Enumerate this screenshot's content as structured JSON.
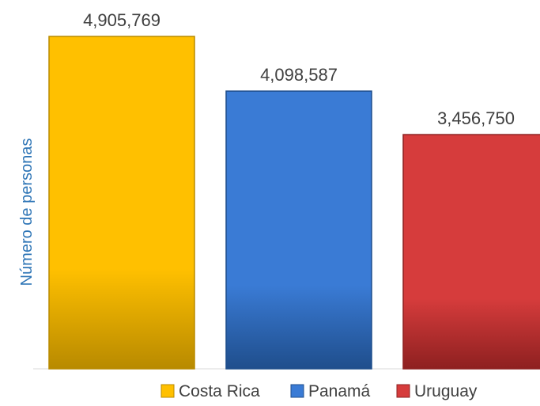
{
  "chart_data": {
    "type": "bar",
    "title": "",
    "xlabel": "",
    "ylabel": "Número de personas",
    "categories": [
      "Costa Rica",
      "Panamá",
      "Uruguay"
    ],
    "values": [
      4905769,
      4098587,
      3456750
    ],
    "value_labels": [
      "4,905,769",
      "4,098,587",
      "3,456,750"
    ],
    "ylim": [
      0,
      4905769
    ],
    "grid": false,
    "legend_position": "bottom",
    "colors": [
      "#FFC000",
      "#3A7BD5",
      "#D63C3C"
    ],
    "color_dark": [
      "#B88A00",
      "#1F4E8C",
      "#8E2020"
    ]
  }
}
